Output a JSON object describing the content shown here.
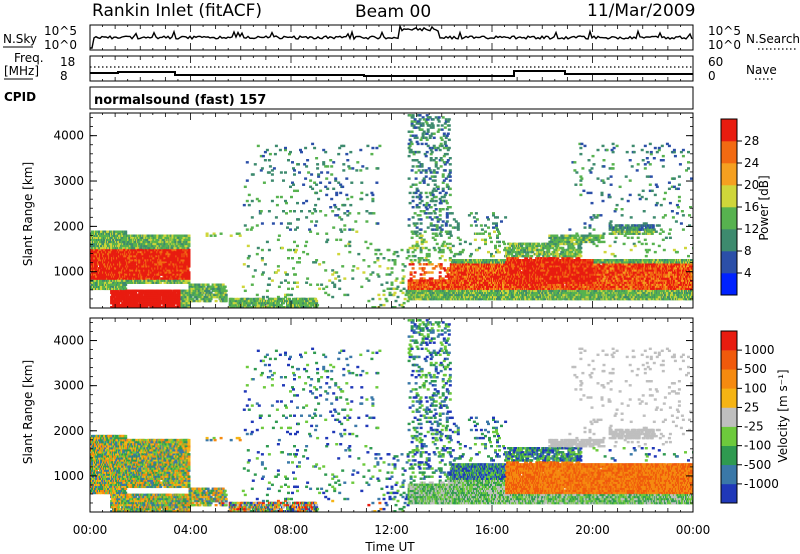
{
  "header": {
    "station": "Rankin Inlet (fitACF)",
    "beam": "Beam 00",
    "date": "11/Mar/2009"
  },
  "noise_panel": {
    "left_label": "N.Sky",
    "right_label": "N.Search",
    "left_ticks": [
      "10^5",
      "10^0"
    ],
    "right_ticks": [
      "10^5",
      "10^0"
    ]
  },
  "freq_panel": {
    "left_label_line1": "Freq.",
    "left_label_line2": "[MHz]",
    "right_label": "Nave",
    "left_ticks": [
      "18",
      "8"
    ],
    "right_ticks": [
      "60",
      "0"
    ]
  },
  "cpid": {
    "label": "CPID",
    "program": "normalsound (fast) 157"
  },
  "chart_data": [
    {
      "type": "heatmap",
      "name": "power",
      "ylabel": "Slant Range [km]",
      "xlabel": "",
      "xlim": [
        0,
        24
      ],
      "ylim": [
        200,
        4500
      ],
      "yticks": [
        "1000",
        "2000",
        "3000",
        "4000"
      ],
      "colorbar_label": "Power [dB]",
      "colorbar_ticks": [
        "4",
        "8",
        "12",
        "16",
        "20",
        "24",
        "28"
      ],
      "colorbar_range": [
        0,
        32
      ],
      "colors": [
        "#0022ff",
        "#2b4fa8",
        "#3d8a6e",
        "#57b24f",
        "#cfd63a",
        "#f5a020",
        "#f26a12",
        "#e81c10"
      ]
    },
    {
      "type": "heatmap",
      "name": "velocity",
      "ylabel": "Slant Range [km]",
      "xlabel": "Time UT",
      "xlim": [
        0,
        24
      ],
      "ylim": [
        200,
        4500
      ],
      "xticks": [
        "00:00",
        "04:00",
        "08:00",
        "12:00",
        "16:00",
        "20:00",
        "00:00"
      ],
      "yticks": [
        "1000",
        "2000",
        "3000",
        "4000"
      ],
      "colorbar_label": "Velocity [m s⁻¹]",
      "colorbar_ticks": [
        "1000",
        "500",
        "100",
        "25",
        "-25",
        "-100",
        "-500",
        "-1000"
      ],
      "colors": [
        "#2038b8",
        "#3a78a8",
        "#2f9a50",
        "#6dca3c",
        "#bfbfbf",
        "#f5b414",
        "#f58a10",
        "#f05a0c",
        "#e81c10"
      ]
    }
  ]
}
